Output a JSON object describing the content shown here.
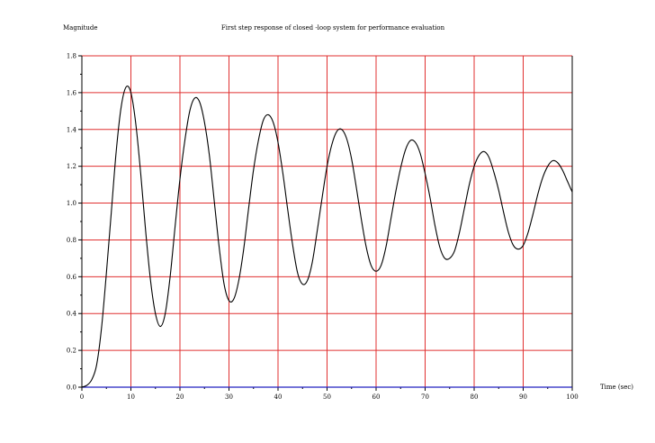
{
  "chart_data": {
    "type": "line",
    "title": "First step response of closed -loop system for performance evaluation",
    "xlabel": "Time (sec)",
    "ylabel": "Magnitude",
    "xlim": [
      0,
      100
    ],
    "ylim": [
      0,
      1.8
    ],
    "x_ticks": [
      "0",
      "10",
      "20",
      "30",
      "40",
      "50",
      "60",
      "70",
      "80",
      "90",
      "100"
    ],
    "y_ticks": [
      "0.0",
      "0.2",
      "0.4",
      "0.6",
      "0.8",
      "1.0",
      "1.2",
      "1.4",
      "1.6",
      "1.8"
    ],
    "grid": true,
    "colors": {
      "grid": "#e03030",
      "series": "#000000",
      "axis": "#000000",
      "baseline": "#2020c0"
    },
    "series": [
      {
        "x": [
          0,
          1,
          2,
          3,
          4,
          5,
          6,
          7,
          8,
          9,
          10,
          11,
          12,
          13,
          14,
          15,
          16,
          17,
          18,
          19,
          20,
          21,
          22,
          23,
          24,
          25,
          26,
          27,
          28,
          29,
          30,
          31,
          32,
          33,
          34,
          35,
          36,
          37,
          38,
          39,
          40,
          41,
          42,
          43,
          44,
          45,
          46,
          47,
          48,
          49,
          50,
          51,
          52,
          53,
          54,
          55,
          56,
          57,
          58,
          59,
          60,
          61,
          62,
          63,
          64,
          65,
          66,
          67,
          68,
          69,
          70,
          71,
          72,
          73,
          74,
          75,
          76,
          77,
          78,
          79,
          80,
          81,
          82,
          83,
          84,
          85,
          86,
          87,
          88,
          89,
          90,
          91,
          92,
          93,
          94,
          95,
          96,
          97,
          98,
          99,
          100
        ],
        "y": [
          0.0,
          0.01,
          0.04,
          0.12,
          0.32,
          0.62,
          0.95,
          1.28,
          1.52,
          1.63,
          1.6,
          1.43,
          1.16,
          0.85,
          0.58,
          0.4,
          0.33,
          0.4,
          0.6,
          0.87,
          1.13,
          1.34,
          1.5,
          1.57,
          1.55,
          1.44,
          1.26,
          1.01,
          0.76,
          0.56,
          0.47,
          0.48,
          0.58,
          0.75,
          0.97,
          1.18,
          1.34,
          1.45,
          1.48,
          1.44,
          1.33,
          1.16,
          0.96,
          0.77,
          0.62,
          0.56,
          0.58,
          0.68,
          0.85,
          1.03,
          1.2,
          1.32,
          1.39,
          1.4,
          1.35,
          1.24,
          1.08,
          0.91,
          0.76,
          0.66,
          0.63,
          0.66,
          0.76,
          0.91,
          1.06,
          1.19,
          1.29,
          1.34,
          1.33,
          1.27,
          1.16,
          1.03,
          0.88,
          0.76,
          0.7,
          0.7,
          0.74,
          0.84,
          0.97,
          1.1,
          1.2,
          1.26,
          1.28,
          1.25,
          1.17,
          1.07,
          0.95,
          0.84,
          0.77,
          0.75,
          0.77,
          0.84,
          0.94,
          1.05,
          1.14,
          1.2,
          1.23,
          1.22,
          1.18,
          1.12,
          1.06
        ]
      }
    ]
  }
}
